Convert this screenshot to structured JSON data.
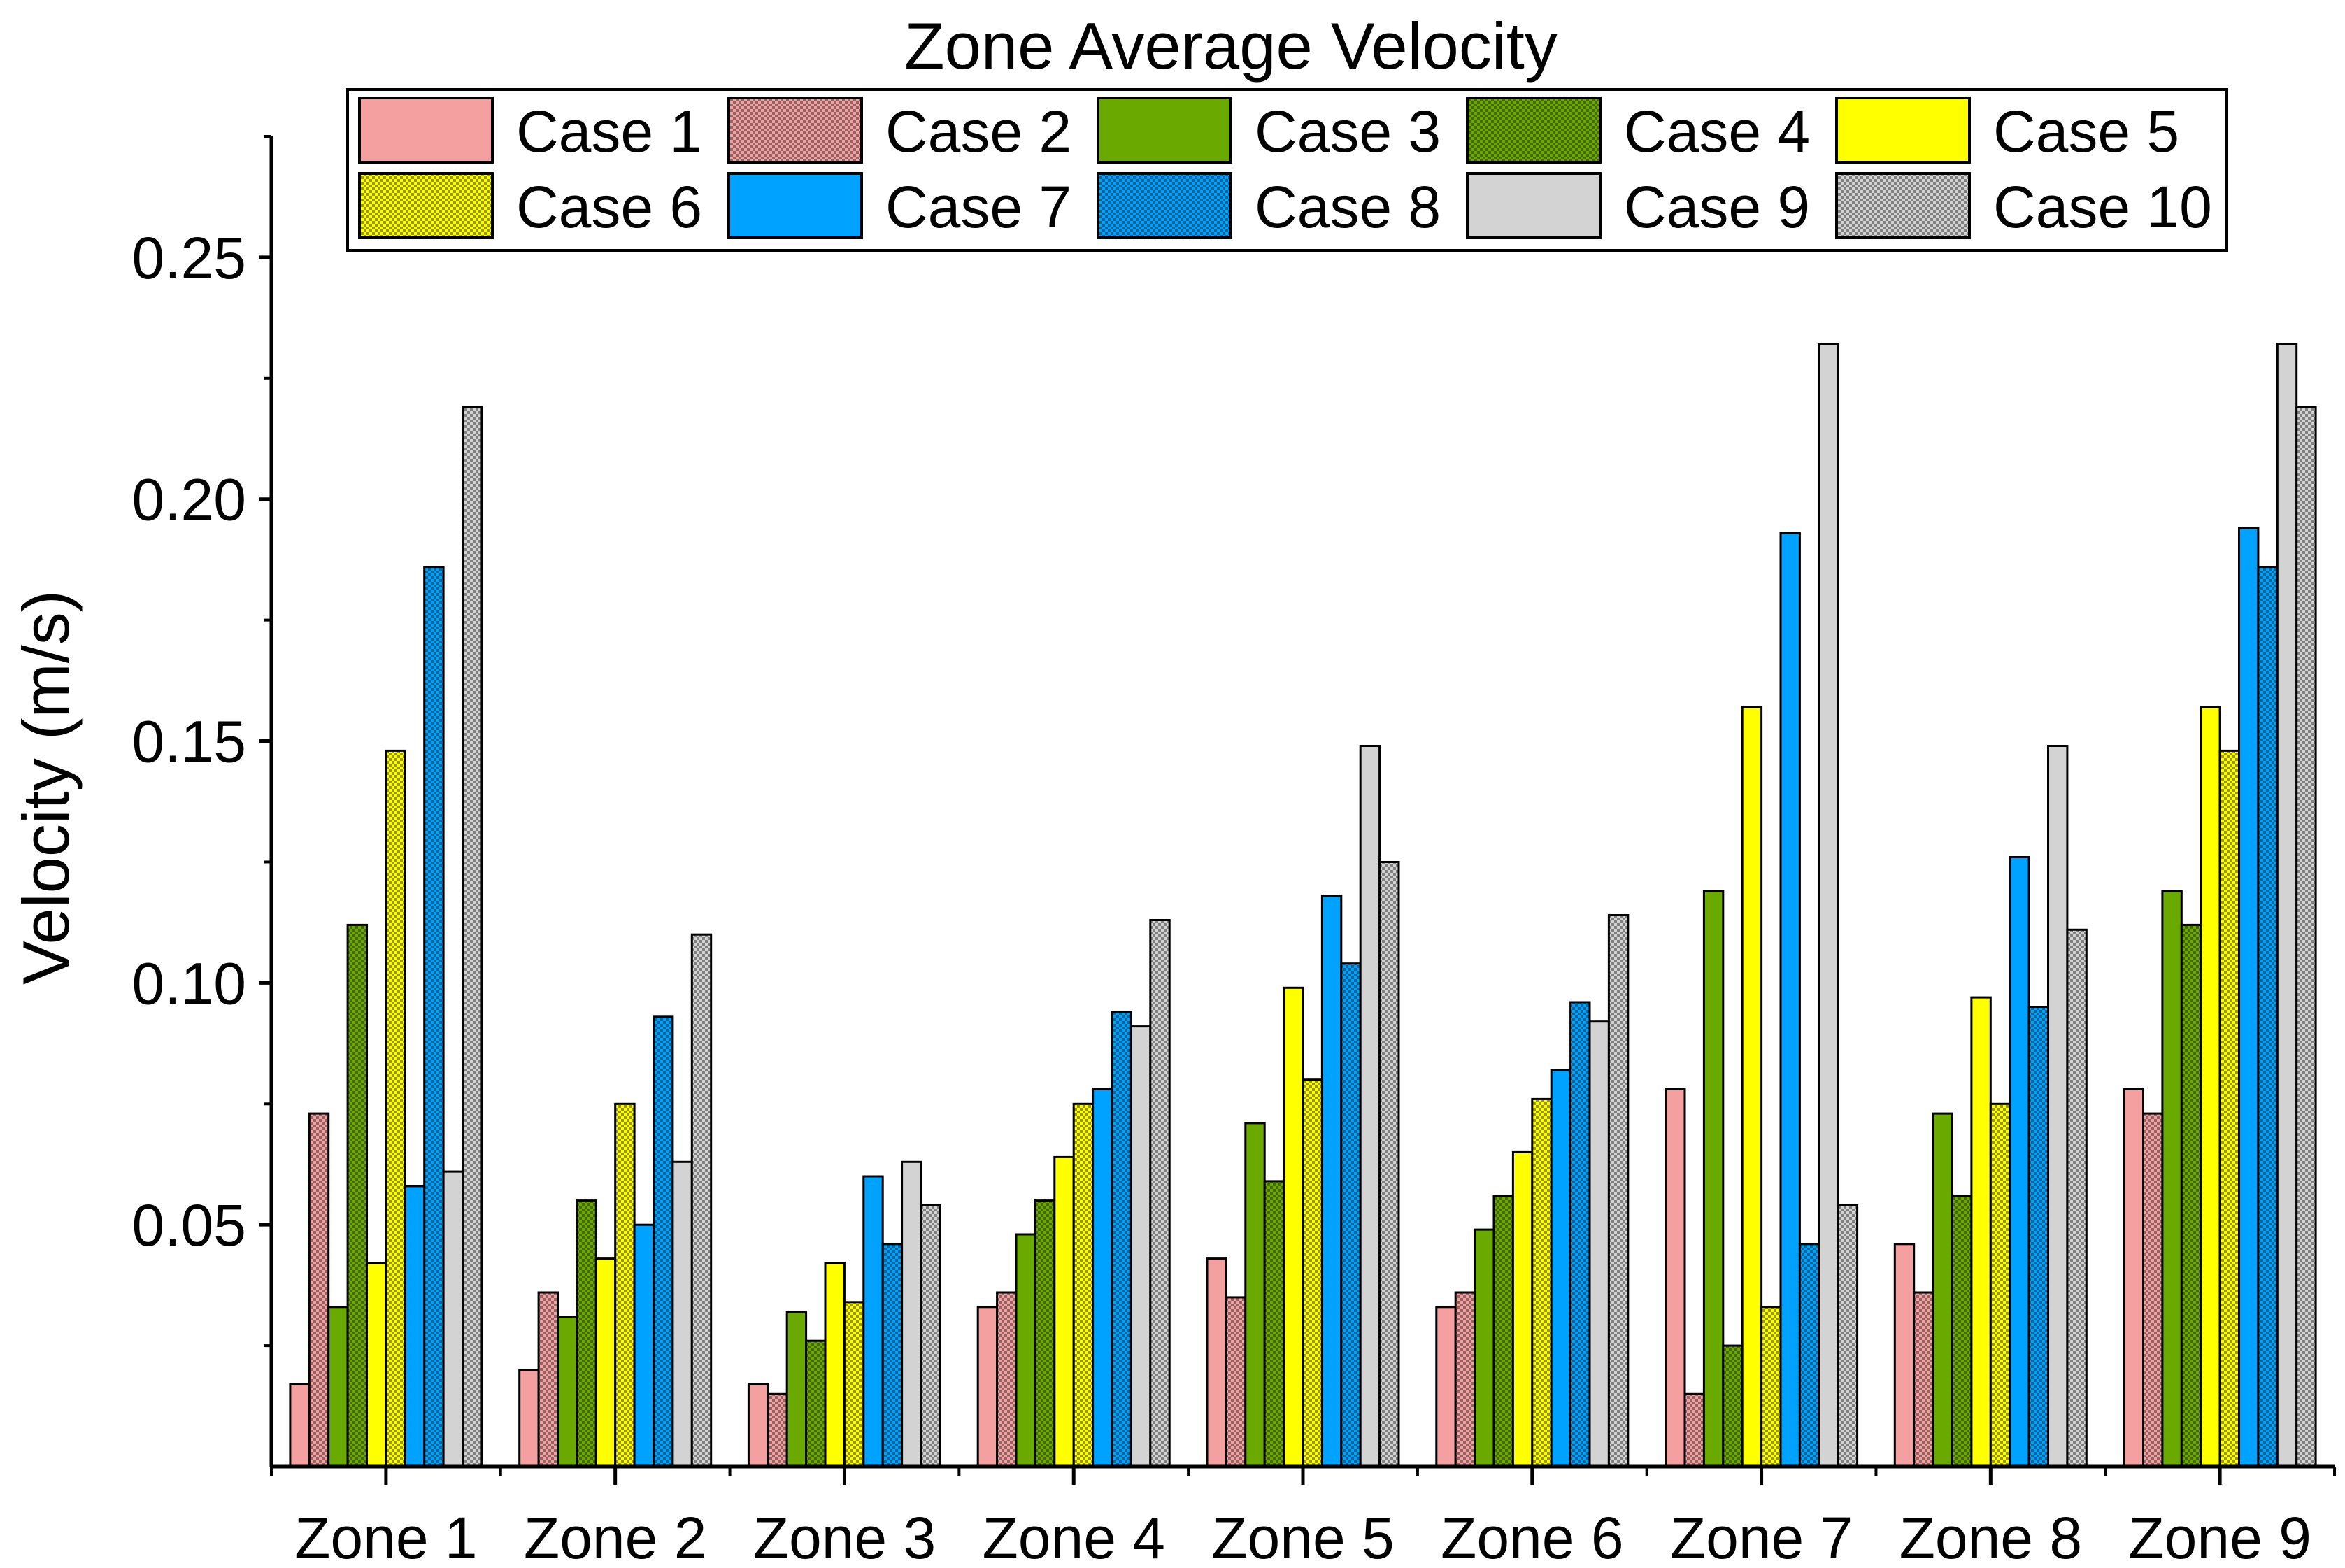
{
  "chart_data": {
    "type": "bar",
    "title": "Zone Average Velocity",
    "xlabel": "",
    "ylabel": "Velocity (m/s)",
    "ylim": [
      0,
      0.275
    ],
    "yticks": [
      0.05,
      0.1,
      0.15,
      0.2,
      0.25
    ],
    "ytick_labels": [
      "0.05",
      "0.10",
      "0.15",
      "0.20",
      "0.25"
    ],
    "grid": false,
    "legend_position": "top",
    "categories": [
      "Zone 1",
      "Zone 2",
      "Zone 3",
      "Zone 4",
      "Zone 5",
      "Zone 6",
      "Zone 7",
      "Zone 8",
      "Zone 9"
    ],
    "series": [
      {
        "name": "Case 1",
        "color": "#f4a0a0",
        "pattern": "solid",
        "values": [
          0.017,
          0.02,
          0.017,
          0.033,
          0.043,
          0.033,
          0.078,
          0.046,
          0.078
        ]
      },
      {
        "name": "Case 2",
        "color": "#f4a0a0",
        "pattern": "checker",
        "values": [
          0.073,
          0.036,
          0.015,
          0.036,
          0.035,
          0.036,
          0.015,
          0.036,
          0.073
        ]
      },
      {
        "name": "Case 3",
        "color": "#6aaa00",
        "pattern": "solid",
        "values": [
          0.033,
          0.031,
          0.032,
          0.048,
          0.071,
          0.049,
          0.119,
          0.073,
          0.119
        ]
      },
      {
        "name": "Case 4",
        "color": "#6aaa00",
        "pattern": "checker",
        "values": [
          0.112,
          0.055,
          0.026,
          0.055,
          0.059,
          0.056,
          0.025,
          0.056,
          0.112
        ]
      },
      {
        "name": "Case 5",
        "color": "#ffff00",
        "pattern": "solid",
        "values": [
          0.042,
          0.043,
          0.042,
          0.064,
          0.099,
          0.065,
          0.157,
          0.097,
          0.157
        ]
      },
      {
        "name": "Case 6",
        "color": "#ffff00",
        "pattern": "checker",
        "values": [
          0.148,
          0.075,
          0.034,
          0.075,
          0.08,
          0.076,
          0.033,
          0.075,
          0.148
        ]
      },
      {
        "name": "Case 7",
        "color": "#00a2ff",
        "pattern": "solid",
        "values": [
          0.058,
          0.05,
          0.06,
          0.078,
          0.118,
          0.082,
          0.193,
          0.126,
          0.194
        ]
      },
      {
        "name": "Case 8",
        "color": "#00a2ff",
        "pattern": "checker",
        "values": [
          0.186,
          0.093,
          0.046,
          0.094,
          0.104,
          0.096,
          0.046,
          0.095,
          0.186
        ]
      },
      {
        "name": "Case 9",
        "color": "#d3d3d3",
        "pattern": "solid",
        "values": [
          0.061,
          0.063,
          0.063,
          0.091,
          0.149,
          0.092,
          0.232,
          0.149,
          0.232
        ]
      },
      {
        "name": "Case 10",
        "color": "#d3d3d3",
        "pattern": "checker",
        "values": [
          0.219,
          0.11,
          0.054,
          0.113,
          0.125,
          0.114,
          0.054,
          0.111,
          0.219
        ]
      }
    ]
  }
}
